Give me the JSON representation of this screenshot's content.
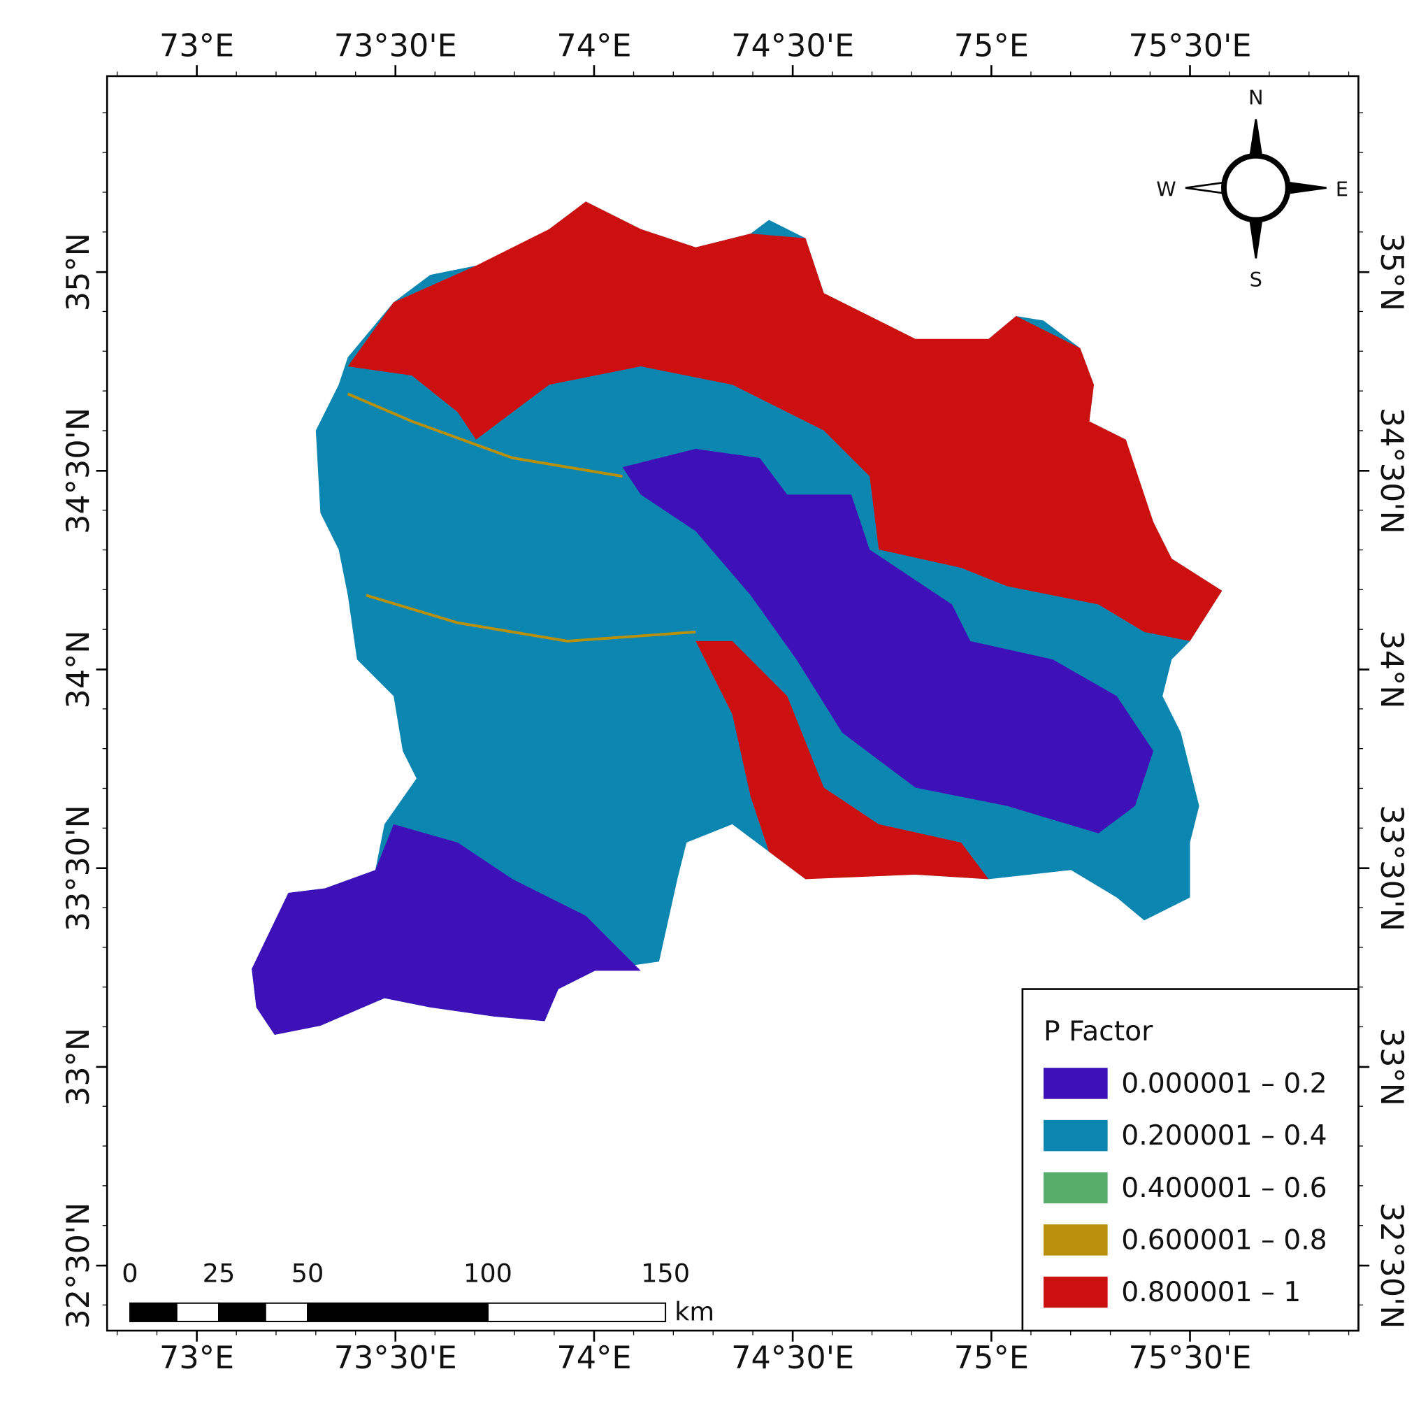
{
  "map": {
    "x_labels": [
      "73°E",
      "73°30'E",
      "74°E",
      "74°30'E",
      "75°E",
      "75°30'E"
    ],
    "y_labels": [
      "35°N",
      "34°30'N",
      "34°N",
      "33°30'N",
      "33°N",
      "32°30'N"
    ],
    "compass": {
      "north": "N",
      "east": "E",
      "south": "S",
      "west": "W"
    },
    "legend": {
      "title": "P Factor",
      "items": [
        {
          "label": "0.000001 – 0.2",
          "color": "#3e10b8"
        },
        {
          "label": "0.200001 – 0.4",
          "color": "#0a86b0"
        },
        {
          "label": "0.400001 – 0.6",
          "color": "#58ad6a"
        },
        {
          "label": "0.600001 – 0.8",
          "color": "#b8900a"
        },
        {
          "label": "0.800001 – 1",
          "color": "#cc1010"
        }
      ]
    },
    "scale_bar": {
      "labels": [
        "0",
        "25",
        "50",
        "100",
        "150"
      ],
      "unit": "km"
    }
  }
}
